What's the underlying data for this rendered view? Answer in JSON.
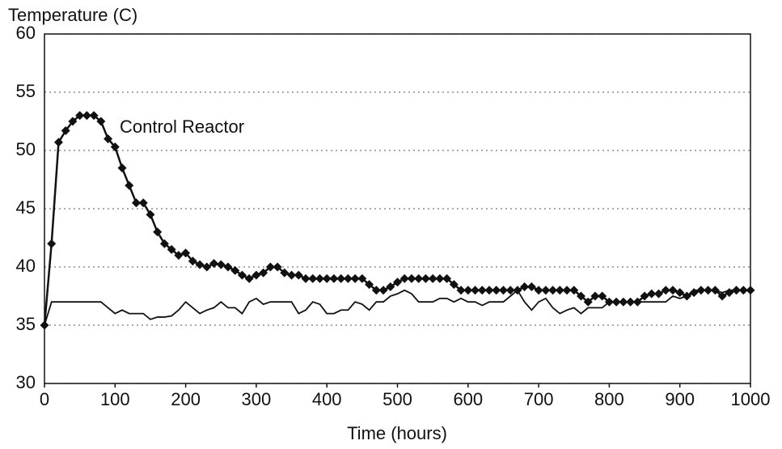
{
  "chart_data": {
    "type": "line",
    "ylabel": "Temperature (C)",
    "xlabel": "Time (hours)",
    "x": [
      0,
      10,
      20,
      30,
      40,
      50,
      60,
      70,
      80,
      90,
      100,
      110,
      120,
      130,
      140,
      150,
      160,
      170,
      180,
      190,
      200,
      210,
      220,
      230,
      240,
      250,
      260,
      270,
      280,
      290,
      300,
      310,
      320,
      330,
      340,
      350,
      360,
      370,
      380,
      390,
      400,
      410,
      420,
      430,
      440,
      450,
      460,
      470,
      480,
      490,
      500,
      510,
      520,
      530,
      540,
      550,
      560,
      570,
      580,
      590,
      600,
      610,
      620,
      630,
      640,
      650,
      660,
      670,
      680,
      690,
      700,
      710,
      720,
      730,
      740,
      750,
      760,
      770,
      780,
      790,
      800,
      810,
      820,
      830,
      840,
      850,
      860,
      870,
      880,
      890,
      900,
      910,
      920,
      930,
      940,
      950,
      960,
      970,
      980,
      990,
      1000
    ],
    "series": [
      {
        "name": "Control Reactor",
        "color": "#111111",
        "marker": "diamond",
        "values": [
          35,
          42,
          50.7,
          51.7,
          52.5,
          53,
          53,
          53,
          52.5,
          51,
          50.3,
          48.5,
          47,
          45.5,
          45.5,
          44.5,
          43,
          42,
          41.5,
          41,
          41.2,
          40.5,
          40.2,
          40,
          40.3,
          40.2,
          40,
          39.7,
          39.3,
          39,
          39.3,
          39.5,
          40,
          40,
          39.5,
          39.3,
          39.3,
          39,
          39,
          39,
          39,
          39,
          39,
          39,
          39,
          39,
          38.5,
          38,
          38,
          38.3,
          38.7,
          39,
          39,
          39,
          39,
          39,
          39,
          39,
          38.5,
          38,
          38,
          38,
          38,
          38,
          38,
          38,
          38,
          38,
          38.3,
          38.3,
          38,
          38,
          38,
          38,
          38,
          38,
          37.5,
          37,
          37.5,
          37.5,
          37,
          37,
          37,
          37,
          37,
          37.5,
          37.7,
          37.7,
          38,
          38,
          37.8,
          37.5,
          37.8,
          38,
          38,
          38,
          37.5,
          37.8,
          38,
          38,
          38
        ]
      },
      {
        "color": "#111111",
        "values": [
          35,
          37,
          37,
          37,
          37,
          37,
          37,
          37,
          37,
          36.5,
          36,
          36.3,
          36,
          36,
          36,
          35.5,
          35.7,
          35.7,
          35.8,
          36.3,
          37,
          36.5,
          36,
          36.3,
          36.5,
          37,
          36.5,
          36.5,
          36,
          37,
          37.3,
          36.8,
          37,
          37,
          37,
          37,
          36,
          36.3,
          37,
          36.8,
          36,
          36,
          36.3,
          36.3,
          37,
          36.8,
          36.3,
          37,
          37,
          37.5,
          37.7,
          38,
          37.7,
          37,
          37,
          37,
          37.3,
          37.3,
          37,
          37.3,
          37,
          37,
          36.7,
          37,
          37,
          37,
          37.5,
          38,
          37,
          36.3,
          37,
          37.3,
          36.5,
          36,
          36.3,
          36.5,
          36,
          36.5,
          36.5,
          36.5,
          37,
          37,
          37,
          37,
          37,
          37,
          37,
          37,
          37,
          37.5,
          37.3,
          37.5,
          38,
          38,
          38,
          38,
          37.8,
          38,
          38,
          38,
          38
        ]
      }
    ],
    "xlim": [
      0,
      1000
    ],
    "xticks": [
      0,
      100,
      200,
      300,
      400,
      500,
      600,
      700,
      800,
      900,
      1000
    ],
    "ylim": [
      30,
      60
    ],
    "yticks": [
      30,
      35,
      40,
      45,
      50,
      55,
      60
    ],
    "grid": true
  }
}
